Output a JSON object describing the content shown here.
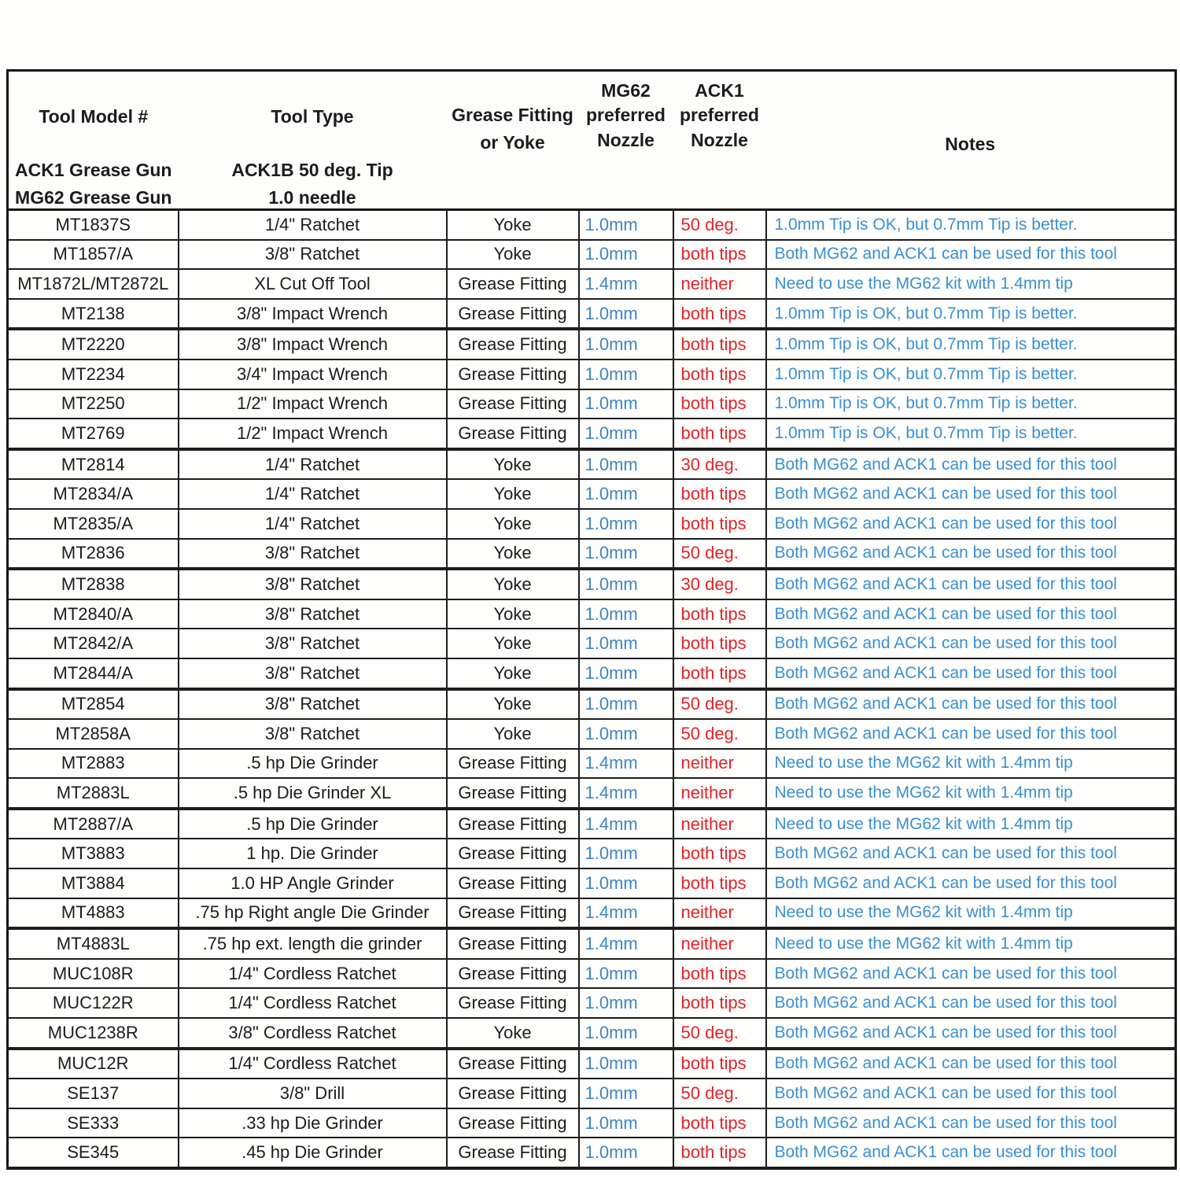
{
  "header": {
    "col1": {
      "title": "Tool Model #",
      "sub1": "ACK1 Grease Gun",
      "sub2": "MG62 Grease Gun"
    },
    "col2": {
      "title": "Tool Type",
      "sub1": "ACK1B 50 deg. Tip",
      "sub2": "1.0 needle"
    },
    "col3": {
      "line1": "Grease Fitting",
      "line2": "or Yoke"
    },
    "col4": {
      "line1": "MG62",
      "line2": "preferred",
      "line3": "Nozzle"
    },
    "col5": {
      "line1": "ACK1",
      "line2": "preferred",
      "line3": "Nozzle"
    },
    "col6": {
      "title": "Notes"
    }
  },
  "colors": {
    "nozzle_blue": "#3d85c6",
    "ack1_red": "#e42328",
    "note_blue": "#3a8fd4",
    "grid_black": "#1d1d1d"
  },
  "rows": [
    {
      "model": "MT1837S",
      "type": "1/4\" Ratchet",
      "fitting": "Yoke",
      "mg62": "1.0mm",
      "ack1": "50 deg.",
      "note": "1.0mm Tip is OK, but 0.7mm Tip is better."
    },
    {
      "model": "MT1857/A",
      "type": "3/8\" Ratchet",
      "fitting": "Yoke",
      "mg62": "1.0mm",
      "ack1": "both tips",
      "note": "Both MG62 and ACK1 can be used for this tool"
    },
    {
      "model": "MT1872L/MT2872L",
      "type": "XL Cut Off Tool",
      "fitting": "Grease Fitting",
      "mg62": "1.4mm",
      "ack1": "neither",
      "note": "Need to use the MG62 kit with 1.4mm tip"
    },
    {
      "model": "MT2138",
      "type": "3/8\" Impact Wrench",
      "fitting": "Grease Fitting",
      "mg62": "1.0mm",
      "ack1": "both tips",
      "note": "1.0mm Tip is OK, but 0.7mm Tip is better."
    },
    {
      "model": "MT2220",
      "type": "3/8\" Impact Wrench",
      "fitting": "Grease Fitting",
      "mg62": "1.0mm",
      "ack1": "both tips",
      "note": "1.0mm Tip is OK, but 0.7mm Tip is better."
    },
    {
      "model": "MT2234",
      "type": "3/4\" Impact Wrench",
      "fitting": "Grease Fitting",
      "mg62": "1.0mm",
      "ack1": "both tips",
      "note": "1.0mm Tip is OK, but 0.7mm Tip is better."
    },
    {
      "model": "MT2250",
      "type": "1/2\" Impact Wrench",
      "fitting": "Grease Fitting",
      "mg62": "1.0mm",
      "ack1": "both tips",
      "note": "1.0mm Tip is OK, but 0.7mm Tip is better."
    },
    {
      "model": "MT2769",
      "type": "1/2\" Impact Wrench",
      "fitting": "Grease Fitting",
      "mg62": "1.0mm",
      "ack1": "both tips",
      "note": "1.0mm Tip is OK, but 0.7mm Tip is better."
    },
    {
      "model": "MT2814",
      "type": "1/4\" Ratchet",
      "fitting": "Yoke",
      "mg62": "1.0mm",
      "ack1": "30 deg.",
      "note": "Both MG62 and ACK1 can be used for this tool"
    },
    {
      "model": "MT2834/A",
      "type": "1/4\" Ratchet",
      "fitting": "Yoke",
      "mg62": "1.0mm",
      "ack1": "both tips",
      "note": "Both MG62 and ACK1 can be used for this tool"
    },
    {
      "model": "MT2835/A",
      "type": "1/4\" Ratchet",
      "fitting": "Yoke",
      "mg62": "1.0mm",
      "ack1": "both tips",
      "note": "Both MG62 and ACK1 can be used for this tool"
    },
    {
      "model": "MT2836",
      "type": "3/8\" Ratchet",
      "fitting": "Yoke",
      "mg62": "1.0mm",
      "ack1": "50 deg.",
      "note": "Both MG62 and ACK1 can be used for this tool"
    },
    {
      "model": "MT2838",
      "type": "3/8\" Ratchet",
      "fitting": "Yoke",
      "mg62": "1.0mm",
      "ack1": "30 deg.",
      "note": "Both MG62 and ACK1 can be used for this tool"
    },
    {
      "model": "MT2840/A",
      "type": "3/8\" Ratchet",
      "fitting": "Yoke",
      "mg62": "1.0mm",
      "ack1": "both tips",
      "note": "Both MG62 and ACK1 can be used for this tool"
    },
    {
      "model": "MT2842/A",
      "type": "3/8\" Ratchet",
      "fitting": "Yoke",
      "mg62": "1.0mm",
      "ack1": "both tips",
      "note": "Both MG62 and ACK1 can be used for this tool"
    },
    {
      "model": "MT2844/A",
      "type": "3/8\" Ratchet",
      "fitting": "Yoke",
      "mg62": "1.0mm",
      "ack1": "both tips",
      "note": "Both MG62 and ACK1 can be used for this tool"
    },
    {
      "model": "MT2854",
      "type": "3/8\" Ratchet",
      "fitting": "Yoke",
      "mg62": "1.0mm",
      "ack1": "50 deg.",
      "note": "Both MG62 and ACK1 can be used for this tool"
    },
    {
      "model": "MT2858A",
      "type": "3/8\" Ratchet",
      "fitting": "Yoke",
      "mg62": "1.0mm",
      "ack1": "50 deg.",
      "note": "Both MG62 and ACK1 can be used for this tool"
    },
    {
      "model": "MT2883",
      "type": ".5 hp  Die Grinder",
      "fitting": "Grease Fitting",
      "mg62": "1.4mm",
      "ack1": "neither",
      "note": "Need to use the MG62 kit with 1.4mm tip"
    },
    {
      "model": "MT2883L",
      "type": ".5 hp  Die Grinder XL",
      "fitting": "Grease Fitting",
      "mg62": "1.4mm",
      "ack1": "neither",
      "note": "Need to use the MG62 kit with 1.4mm tip"
    },
    {
      "model": "MT2887/A",
      "type": ".5 hp  Die Grinder",
      "fitting": "Grease Fitting",
      "mg62": "1.4mm",
      "ack1": "neither",
      "note": "Need to use the MG62 kit with 1.4mm tip"
    },
    {
      "model": "MT3883",
      "type": "1 hp. Die Grinder",
      "fitting": "Grease Fitting",
      "mg62": "1.0mm",
      "ack1": "both tips",
      "note": "Both MG62 and ACK1 can be used for this tool"
    },
    {
      "model": "MT3884",
      "type": "1.0 HP Angle Grinder",
      "fitting": "Grease Fitting",
      "mg62": "1.0mm",
      "ack1": "both tips",
      "note": "Both MG62 and ACK1 can be used for this tool"
    },
    {
      "model": "MT4883",
      "type": ".75 hp Right angle  Die Grinder",
      "fitting": "Grease Fitting",
      "mg62": "1.4mm",
      "ack1": "neither",
      "note": "Need to use the MG62 kit with 1.4mm tip"
    },
    {
      "model": "MT4883L",
      "type": ".75 hp ext. length die grinder",
      "fitting": "Grease Fitting",
      "mg62": "1.4mm",
      "ack1": "neither",
      "note": "Need to use the MG62 kit with 1.4mm tip"
    },
    {
      "model": "MUC108R",
      "type": "1/4\" Cordless Ratchet",
      "fitting": "Grease Fitting",
      "mg62": "1.0mm",
      "ack1": "both tips",
      "note": "Both MG62 and ACK1 can be used for this tool"
    },
    {
      "model": "MUC122R",
      "type": "1/4\" Cordless Ratchet",
      "fitting": "Grease Fitting",
      "mg62": "1.0mm",
      "ack1": "both tips",
      "note": "Both MG62 and ACK1 can be used for this tool"
    },
    {
      "model": "MUC1238R",
      "type": "3/8\" Cordless Ratchet",
      "fitting": "Yoke",
      "mg62": "1.0mm",
      "ack1": "50 deg.",
      "note": "Both MG62 and ACK1 can be used for this tool"
    },
    {
      "model": "MUC12R",
      "type": "1/4\" Cordless Ratchet",
      "fitting": "Grease Fitting",
      "mg62": "1.0mm",
      "ack1": "both tips",
      "note": "Both MG62 and ACK1 can be used for this tool"
    },
    {
      "model": "SE137",
      "type": "3/8\" Drill",
      "fitting": "Grease Fitting",
      "mg62": "1.0mm",
      "ack1": "50 deg.",
      "note": "Both MG62 and ACK1 can be used for this tool"
    },
    {
      "model": "SE333",
      "type": ".33 hp  Die Grinder",
      "fitting": "Grease Fitting",
      "mg62": "1.0mm",
      "ack1": "both tips",
      "note": "Both MG62 and ACK1 can be used for this tool"
    },
    {
      "model": "SE345",
      "type": ".45 hp  Die Grinder",
      "fitting": "Grease Fitting",
      "mg62": "1.0mm",
      "ack1": "both tips",
      "note": "Both MG62 and ACK1 can be used for this tool"
    }
  ],
  "group_size": 4
}
